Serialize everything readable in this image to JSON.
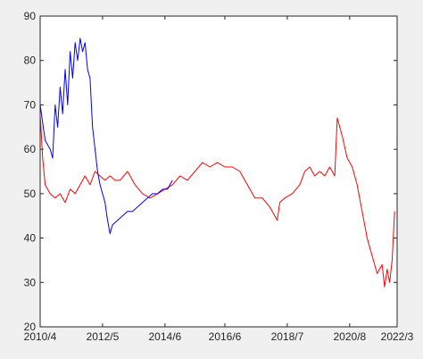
{
  "chart_data": {
    "type": "line",
    "title": "",
    "xlabel": "",
    "ylabel": "",
    "xlim": [
      "2010/4",
      "2022/3"
    ],
    "ylim": [
      20,
      90
    ],
    "x_ticks": [
      "2010/4",
      "2012/5",
      "2014/6",
      "2016/6",
      "2018/7",
      "2020/8",
      "2022/3"
    ],
    "y_ticks": [
      20,
      30,
      40,
      50,
      60,
      70,
      80,
      90
    ],
    "grid": false,
    "legend": "none",
    "series": [
      {
        "color": "#ff0000",
        "points": [
          [
            "2010/4",
            68
          ],
          [
            "2010/5",
            58
          ],
          [
            "2010/6",
            52
          ],
          [
            "2010/8",
            50
          ],
          [
            "2010/10",
            49
          ],
          [
            "2010/12",
            50
          ],
          [
            "2011/2",
            48
          ],
          [
            "2011/4",
            51
          ],
          [
            "2011/6",
            50
          ],
          [
            "2011/8",
            52
          ],
          [
            "2011/10",
            54
          ],
          [
            "2011/12",
            52
          ],
          [
            "2012/2",
            55
          ],
          [
            "2012/4",
            54
          ],
          [
            "2012/6",
            53
          ],
          [
            "2012/8",
            54
          ],
          [
            "2012/10",
            53
          ],
          [
            "2012/12",
            53
          ],
          [
            "2013/3",
            55
          ],
          [
            "2013/6",
            52
          ],
          [
            "2013/9",
            50
          ],
          [
            "2013/12",
            49
          ],
          [
            "2014/3",
            50
          ],
          [
            "2014/6",
            51
          ],
          [
            "2014/9",
            52
          ],
          [
            "2014/12",
            54
          ],
          [
            "2015/3",
            53
          ],
          [
            "2015/6",
            55
          ],
          [
            "2015/9",
            57
          ],
          [
            "2015/12",
            56
          ],
          [
            "2016/3",
            57
          ],
          [
            "2016/6",
            56
          ],
          [
            "2016/9",
            56
          ],
          [
            "2016/12",
            55
          ],
          [
            "2017/3",
            52
          ],
          [
            "2017/6",
            49
          ],
          [
            "2017/9",
            49
          ],
          [
            "2017/12",
            47
          ],
          [
            "2018/3",
            44
          ],
          [
            "2018/4",
            48
          ],
          [
            "2018/6",
            49
          ],
          [
            "2018/9",
            50
          ],
          [
            "2018/12",
            52
          ],
          [
            "2019/2",
            55
          ],
          [
            "2019/4",
            56
          ],
          [
            "2019/6",
            54
          ],
          [
            "2019/8",
            55
          ],
          [
            "2019/10",
            54
          ],
          [
            "2019/12",
            56
          ],
          [
            "2020/2",
            54
          ],
          [
            "2020/3",
            67
          ],
          [
            "2020/5",
            63
          ],
          [
            "2020/7",
            58
          ],
          [
            "2020/9",
            56
          ],
          [
            "2020/11",
            52
          ],
          [
            "2021/1",
            46
          ],
          [
            "2021/3",
            40
          ],
          [
            "2021/5",
            36
          ],
          [
            "2021/7",
            32
          ],
          [
            "2021/9",
            34
          ],
          [
            "2021/10",
            29
          ],
          [
            "2021/11",
            33
          ],
          [
            "2021/12",
            30
          ],
          [
            "2022/1",
            35
          ],
          [
            "2022/2",
            46
          ]
        ]
      },
      {
        "color": "#0000ff",
        "points": [
          [
            "2010/4",
            70
          ],
          [
            "2010/5",
            66
          ],
          [
            "2010/6",
            62
          ],
          [
            "2010/8",
            60
          ],
          [
            "2010/9",
            58
          ],
          [
            "2010/10",
            70
          ],
          [
            "2010/11",
            65
          ],
          [
            "2010/12",
            74
          ],
          [
            "2011/1",
            68
          ],
          [
            "2011/2",
            78
          ],
          [
            "2011/3",
            70
          ],
          [
            "2011/4",
            82
          ],
          [
            "2011/5",
            76
          ],
          [
            "2011/6",
            84
          ],
          [
            "2011/7",
            80
          ],
          [
            "2011/8",
            85
          ],
          [
            "2011/9",
            82
          ],
          [
            "2011/10",
            84
          ],
          [
            "2011/11",
            78
          ],
          [
            "2011/12",
            76
          ],
          [
            "2012/1",
            65
          ],
          [
            "2012/2",
            60
          ],
          [
            "2012/3",
            55
          ],
          [
            "2012/4",
            52
          ],
          [
            "2012/5",
            50
          ],
          [
            "2012/6",
            48
          ],
          [
            "2012/7",
            44
          ],
          [
            "2012/8",
            41
          ],
          [
            "2012/9",
            43
          ],
          [
            "2012/11",
            44
          ],
          [
            "2013/1",
            45
          ],
          [
            "2013/3",
            46
          ],
          [
            "2013/5",
            46
          ],
          [
            "2013/7",
            47
          ],
          [
            "2013/9",
            48
          ],
          [
            "2013/11",
            49
          ],
          [
            "2014/1",
            50
          ],
          [
            "2014/3",
            50
          ],
          [
            "2014/5",
            51
          ],
          [
            "2014/7",
            51
          ],
          [
            "2014/9",
            53
          ]
        ]
      }
    ]
  }
}
